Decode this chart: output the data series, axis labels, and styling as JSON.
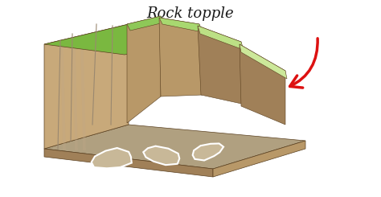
{
  "title": "Rock topple",
  "title_fontsize": 13,
  "title_style": "italic",
  "title_color": "#1a1a1a",
  "background_color": "#ffffff",
  "colors": {
    "sand_face": "#c8a97a",
    "sand_mid": "#b89868",
    "sand_dark": "#a08058",
    "green_top": "#7ab840",
    "green_layer1": "#8ec858",
    "green_layer2": "#a8d870",
    "green_layer3": "#bce085",
    "green_layer4": "#cce89a",
    "outline": "#5a4020",
    "crack": "#9a8870",
    "rock_fill": "#c8b898",
    "rock_outline": "#ffffff",
    "ground_top": "#b0a080",
    "ground_side": "#8a7860",
    "arrow": "#dd1111"
  }
}
